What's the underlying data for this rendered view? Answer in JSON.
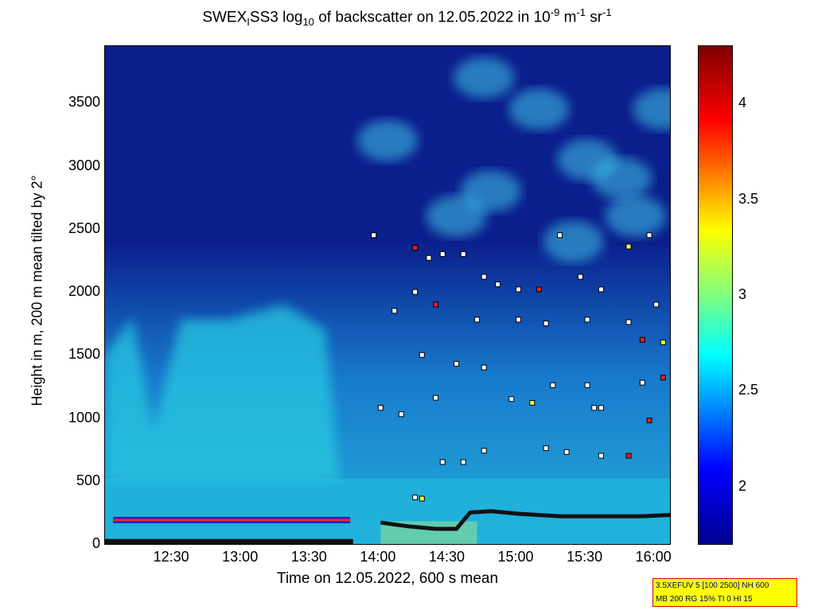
{
  "title": {
    "part1": "SWEX",
    "part2": "SS3 log",
    "sub10": "10",
    "part3": " of backscatter on 12.05.2022 in 10",
    "exp1": "-9",
    "part4": " m",
    "exp2": "-1",
    "part5": " sr",
    "exp3": "-1",
    "sub_i": "I"
  },
  "chart_data": {
    "type": "heatmap",
    "xlabel": "Time on 12.05.2022, 600 s mean",
    "ylabel": "Height in m, 200 m mean tilted by 2°",
    "x_ticks": [
      "12:30",
      "13:00",
      "13:30",
      "14:00",
      "14:30",
      "15:00",
      "15:30",
      "16:00"
    ],
    "x_tick_hours": [
      12.5,
      13.0,
      13.5,
      14.0,
      14.5,
      15.0,
      15.5,
      16.0
    ],
    "xlim_hours": [
      12.0,
      16.1
    ],
    "y_ticks": [
      "0",
      "500",
      "1000",
      "1500",
      "2000",
      "2500",
      "3000",
      "3500"
    ],
    "y_tick_values": [
      0,
      500,
      1000,
      1500,
      2000,
      2500,
      3000,
      3500
    ],
    "ylim": [
      0,
      3950
    ],
    "colorbar": {
      "ticks": [
        "2",
        "2.5",
        "3",
        "3.5",
        "4"
      ],
      "values": [
        2,
        2.5,
        3,
        3.5,
        4
      ],
      "range": [
        1.7,
        4.3
      ],
      "colormap": "jet"
    },
    "cloud_points": [
      [
        14.25,
        2350
      ],
      [
        14.35,
        2270
      ],
      [
        14.45,
        2300
      ],
      [
        14.6,
        2300
      ],
      [
        14.75,
        2120
      ],
      [
        14.85,
        2060
      ],
      [
        15.0,
        2020
      ],
      [
        15.15,
        2020
      ],
      [
        15.3,
        2450
      ],
      [
        15.45,
        2120
      ],
      [
        15.6,
        2020
      ],
      [
        15.8,
        2360
      ],
      [
        15.95,
        2450
      ],
      [
        14.25,
        2000
      ],
      [
        14.4,
        1900
      ],
      [
        14.7,
        1780
      ],
      [
        15.0,
        1780
      ],
      [
        15.2,
        1750
      ],
      [
        15.5,
        1780
      ],
      [
        15.8,
        1760
      ],
      [
        16.0,
        1900
      ],
      [
        15.9,
        1620
      ],
      [
        16.05,
        1600
      ],
      [
        14.55,
        1430
      ],
      [
        14.75,
        1400
      ],
      [
        15.25,
        1260
      ],
      [
        15.5,
        1260
      ],
      [
        15.9,
        1280
      ],
      [
        16.05,
        1320
      ],
      [
        14.0,
        1080
      ],
      [
        14.15,
        1030
      ],
      [
        14.4,
        1160
      ],
      [
        14.95,
        1150
      ],
      [
        15.1,
        1120
      ],
      [
        15.6,
        1080
      ],
      [
        15.95,
        980
      ],
      [
        14.45,
        650
      ],
      [
        14.6,
        650
      ],
      [
        14.75,
        740
      ],
      [
        15.2,
        760
      ],
      [
        15.35,
        730
      ],
      [
        15.6,
        700
      ],
      [
        15.8,
        700
      ],
      [
        14.25,
        370
      ],
      [
        14.3,
        360
      ],
      [
        13.95,
        2450
      ],
      [
        14.1,
        1850
      ],
      [
        14.3,
        1500
      ],
      [
        15.55,
        1080
      ]
    ],
    "surface_layer": [
      [
        14.0,
        170
      ],
      [
        14.2,
        140
      ],
      [
        14.4,
        120
      ],
      [
        14.55,
        120
      ],
      [
        14.65,
        250
      ],
      [
        14.8,
        260
      ],
      [
        15.0,
        240
      ],
      [
        15.3,
        220
      ],
      [
        15.6,
        220
      ],
      [
        15.9,
        220
      ],
      [
        16.1,
        230
      ]
    ],
    "early_layer_y": 190
  },
  "infobox": {
    "line1": "3.5XEFUV 5 [100 2500] NH 600",
    "line2": "MB 200 RG 15% TI 0 HI 15"
  }
}
